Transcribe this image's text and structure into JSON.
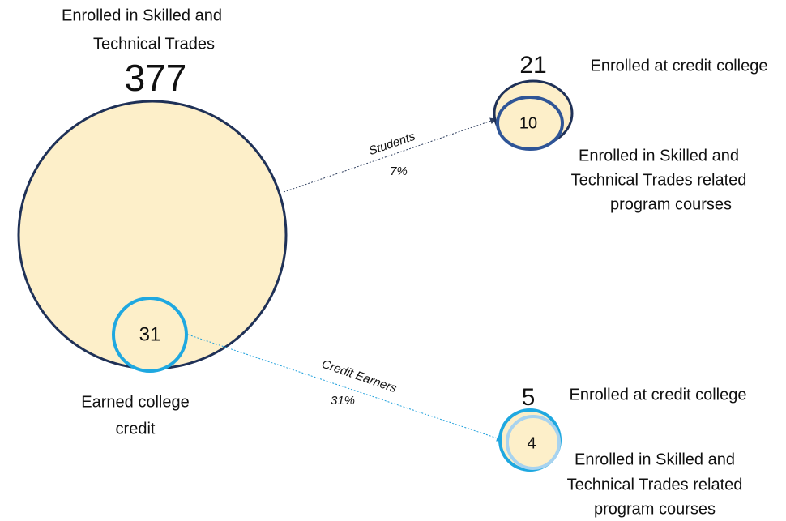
{
  "main": {
    "title_lines": [
      "Enrolled in Skilled and",
      "Technical Trades"
    ],
    "count": 377,
    "subset": {
      "count": 31,
      "label_lines": [
        "Earned college",
        "credit"
      ]
    }
  },
  "flows": [
    {
      "label": "Students",
      "percent": "7%",
      "target": {
        "count": 21,
        "label": "Enrolled at credit college",
        "subset": {
          "count": 10,
          "label_lines": [
            "Enrolled in Skilled and",
            "Technical Trades related",
            "program courses"
          ]
        }
      }
    },
    {
      "label": "Credit Earners",
      "percent": "31%",
      "target": {
        "count": 5,
        "label": "Enrolled at credit college",
        "subset": {
          "count": 4,
          "label_lines": [
            "Enrolled in Skilled and",
            "Technical Trades related",
            "program courses"
          ]
        }
      }
    }
  ]
}
